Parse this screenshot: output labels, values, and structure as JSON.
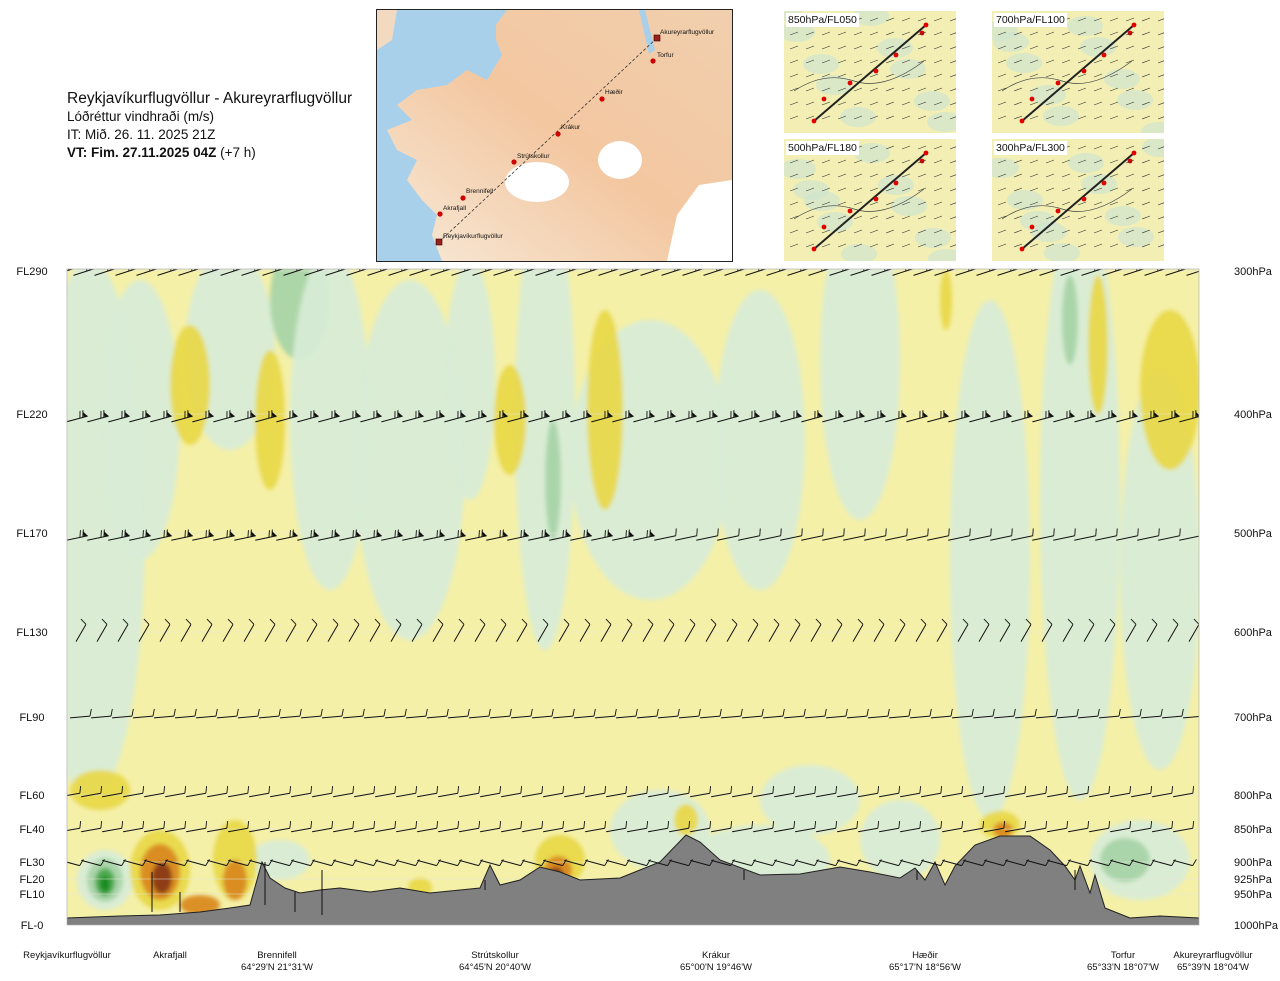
{
  "header": {
    "title": "Reykjavíkurflugvöllur - Akureyrarflugvöllur",
    "subtitle": "Lóðréttur vindhraði (m/s)",
    "issue": "IT: Mið. 26. 11. 2025 21Z",
    "valid_bold": "VT: Fim. 27.11.2025 04Z",
    "valid_suffix": " (+7 h)"
  },
  "map": {
    "waypoints": [
      "Akureyrarflugvöllur",
      "Torfur",
      "Hæðir",
      "Krákur",
      "Strútskollur",
      "Brennifell",
      "Akrafjall",
      "Reykjavíkurflugvöllur"
    ]
  },
  "panels": [
    {
      "label": "850hPa/FL050"
    },
    {
      "label": "700hPa/FL100"
    },
    {
      "label": "500hPa/FL180"
    },
    {
      "label": "300hPa/FL300"
    }
  ],
  "chart_data": {
    "type": "cross-section",
    "title": "Lóðréttur vindhraði (m/s)",
    "x_range": [
      0,
      100
    ],
    "left_axis_labels": [
      "FL290",
      "FL220",
      "FL170",
      "FL130",
      "FL90",
      "FL60",
      "FL40",
      "FL30",
      "FL20",
      "FL10",
      "FL-0"
    ],
    "right_axis_labels": [
      "300hPa",
      "400hPa",
      "500hPa",
      "600hPa",
      "700hPa",
      "800hPa",
      "850hPa",
      "900hPa",
      "925hPa",
      "950hPa",
      "1000hPa"
    ],
    "stations": [
      {
        "name": "Reykjavíkurflugvöllur",
        "coord": ""
      },
      {
        "name": "Akrafjall",
        "coord": ""
      },
      {
        "name": "Brennifell",
        "coord": "64°29'N 21°31'W"
      },
      {
        "name": "Strútskollur",
        "coord": "64°45'N 20°40'W"
      },
      {
        "name": "Krákur",
        "coord": "65°00'N 19°46'W"
      },
      {
        "name": "Hæðir",
        "coord": "65°17'N 18°56'W"
      },
      {
        "name": "Torfur",
        "coord": "65°33'N 18°07'W"
      },
      {
        "name": "Akureyrarflugvöllur",
        "coord": "65°39'N 18°04'W"
      }
    ],
    "colors": {
      "up_weak": "#f5f0a8",
      "up_mod": "#e8d84a",
      "up_strong": "#d98a20",
      "up_vstrong": "#8a3a14",
      "down_weak": "#d8ecd6",
      "down_mod": "#a8d4a8",
      "down_strong": "#4aa84a",
      "down_vstrong": "#128a1e",
      "terrain": "#808080"
    }
  }
}
